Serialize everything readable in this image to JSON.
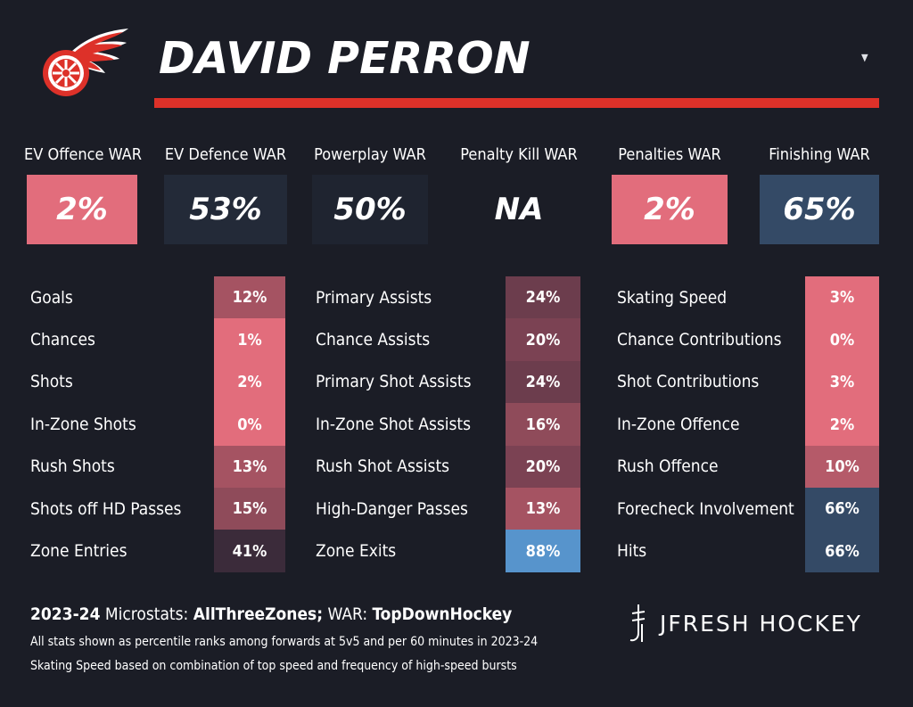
{
  "player": {
    "name": "DAVID PERRON"
  },
  "dropdown": {
    "icon": "caret-down-icon"
  },
  "colors": {
    "background": "#1b1d26",
    "accent_bar": "#dd3129"
  },
  "war": [
    {
      "label": "EV Offence WAR",
      "value": "2%",
      "color": "#e26d7c"
    },
    {
      "label": "EV Defence WAR",
      "value": "53%",
      "color": "#232a38"
    },
    {
      "label": "Powerplay WAR",
      "value": "50%",
      "color": "#1f2430"
    },
    {
      "label": "Penalty Kill WAR",
      "value": "NA",
      "color": "#1b1d26"
    },
    {
      "label": "Penalties WAR",
      "value": "2%",
      "color": "#e26d7c"
    },
    {
      "label": "Finishing WAR",
      "value": "65%",
      "color": "#344a66"
    }
  ],
  "stats": {
    "col1": [
      {
        "label": "Goals",
        "value": "12%",
        "color": "#a55362"
      },
      {
        "label": "Chances",
        "value": "1%",
        "color": "#e26d7c"
      },
      {
        "label": "Shots",
        "value": "2%",
        "color": "#e26d7c"
      },
      {
        "label": "In-Zone Shots",
        "value": "0%",
        "color": "#e26d7c"
      },
      {
        "label": "Rush Shots",
        "value": "13%",
        "color": "#a55362"
      },
      {
        "label": "Shots off HD Passes",
        "value": "15%",
        "color": "#8f4b5a"
      },
      {
        "label": "Zone Entries",
        "value": "41%",
        "color": "#3b2b3a"
      }
    ],
    "col2": [
      {
        "label": "Primary Assists",
        "value": "24%",
        "color": "#6c3d4d"
      },
      {
        "label": "Chance Assists",
        "value": "20%",
        "color": "#7b4253"
      },
      {
        "label": "Primary Shot Assists",
        "value": "24%",
        "color": "#6c3d4d"
      },
      {
        "label": "In-Zone Shot Assists",
        "value": "16%",
        "color": "#8f4b5a"
      },
      {
        "label": "Rush Shot Assists",
        "value": "20%",
        "color": "#7b4253"
      },
      {
        "label": "High-Danger Passes",
        "value": "13%",
        "color": "#a55362"
      },
      {
        "label": "Zone Exits",
        "value": "88%",
        "color": "#5794cc"
      }
    ],
    "col3": [
      {
        "label": "Skating Speed",
        "value": "3%",
        "color": "#e26d7c"
      },
      {
        "label": "Chance Contributions",
        "value": "0%",
        "color": "#e26d7c"
      },
      {
        "label": "Shot Contributions",
        "value": "3%",
        "color": "#e26d7c"
      },
      {
        "label": "In-Zone Offence",
        "value": "2%",
        "color": "#e26d7c"
      },
      {
        "label": "Rush Offence",
        "value": "10%",
        "color": "#b55a69"
      },
      {
        "label": "Forecheck Involvement",
        "value": "66%",
        "color": "#344a66"
      },
      {
        "label": "Hits",
        "value": "66%",
        "color": "#344a66"
      }
    ]
  },
  "footer": {
    "season": "2023-24",
    "microstats_label": " Microstats: ",
    "microstats_source": "AllThreeZones;",
    "war_label": " WAR: ",
    "war_source": "TopDownHockey",
    "note1": "All stats shown as percentile ranks among forwards at 5v5 and per 60 minutes in 2023-24",
    "note2": "Skating Speed based on combination of top speed and frequency of high-speed bursts"
  },
  "brand": {
    "name": "JFRESH HOCKEY",
    "icon": "jfresh-logo-icon"
  },
  "team_logo": {
    "icon": "red-wings-logo-icon"
  }
}
